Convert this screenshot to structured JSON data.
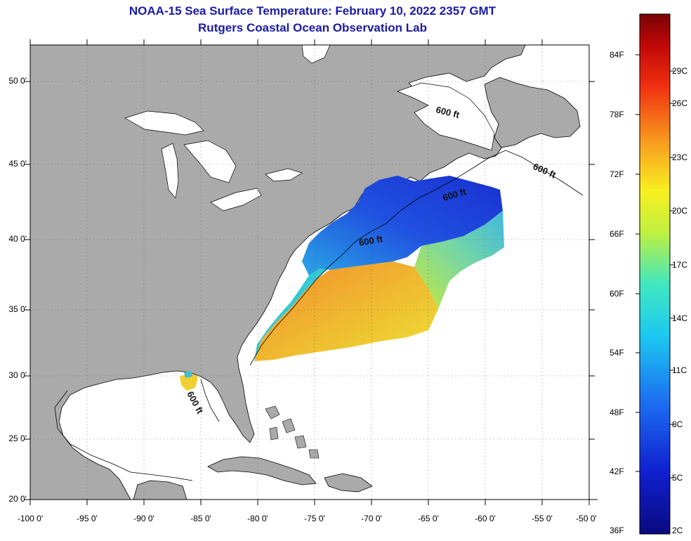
{
  "title_line1": "NOAA-15 Sea Surface Temperature:  February 10, 2022 2357 GMT",
  "title_line2": "Rutgers Coastal Ocean Observation Lab",
  "lat_labels": [
    "50 0'",
    "45 0'",
    "40 0'",
    "35 0'",
    "30 0'",
    "25 0'",
    "20 0'"
  ],
  "lon_labels": [
    "-100 0'",
    "-95 0'",
    "-90 0'",
    "-85 0'",
    "-80 0'",
    "-75 0'",
    "-70 0'",
    "-65 0'",
    "-60 0'",
    "-55 0'",
    "-50 0'"
  ],
  "contour_labels": [
    "600 ft",
    "600 ft",
    "600 ft",
    "600 ft",
    "600 ft"
  ],
  "colorbar": {
    "f_labels": [
      "84F",
      "78F",
      "72F",
      "66F",
      "60F",
      "54F",
      "48F",
      "42F",
      "36F"
    ],
    "c_labels": [
      "29C",
      "26C",
      "23C",
      "20C",
      "17C",
      "14C",
      "11C",
      "8C",
      "5C",
      "2C"
    ]
  },
  "colors": {
    "land": "#aaaaaa",
    "water": "#ffffff",
    "title": "#1a1aa6",
    "sst_warm": "#f0922a",
    "sst_yellow": "#ece334",
    "sst_cyan": "#22b8e0",
    "sst_blue": "#1c3cd8"
  }
}
